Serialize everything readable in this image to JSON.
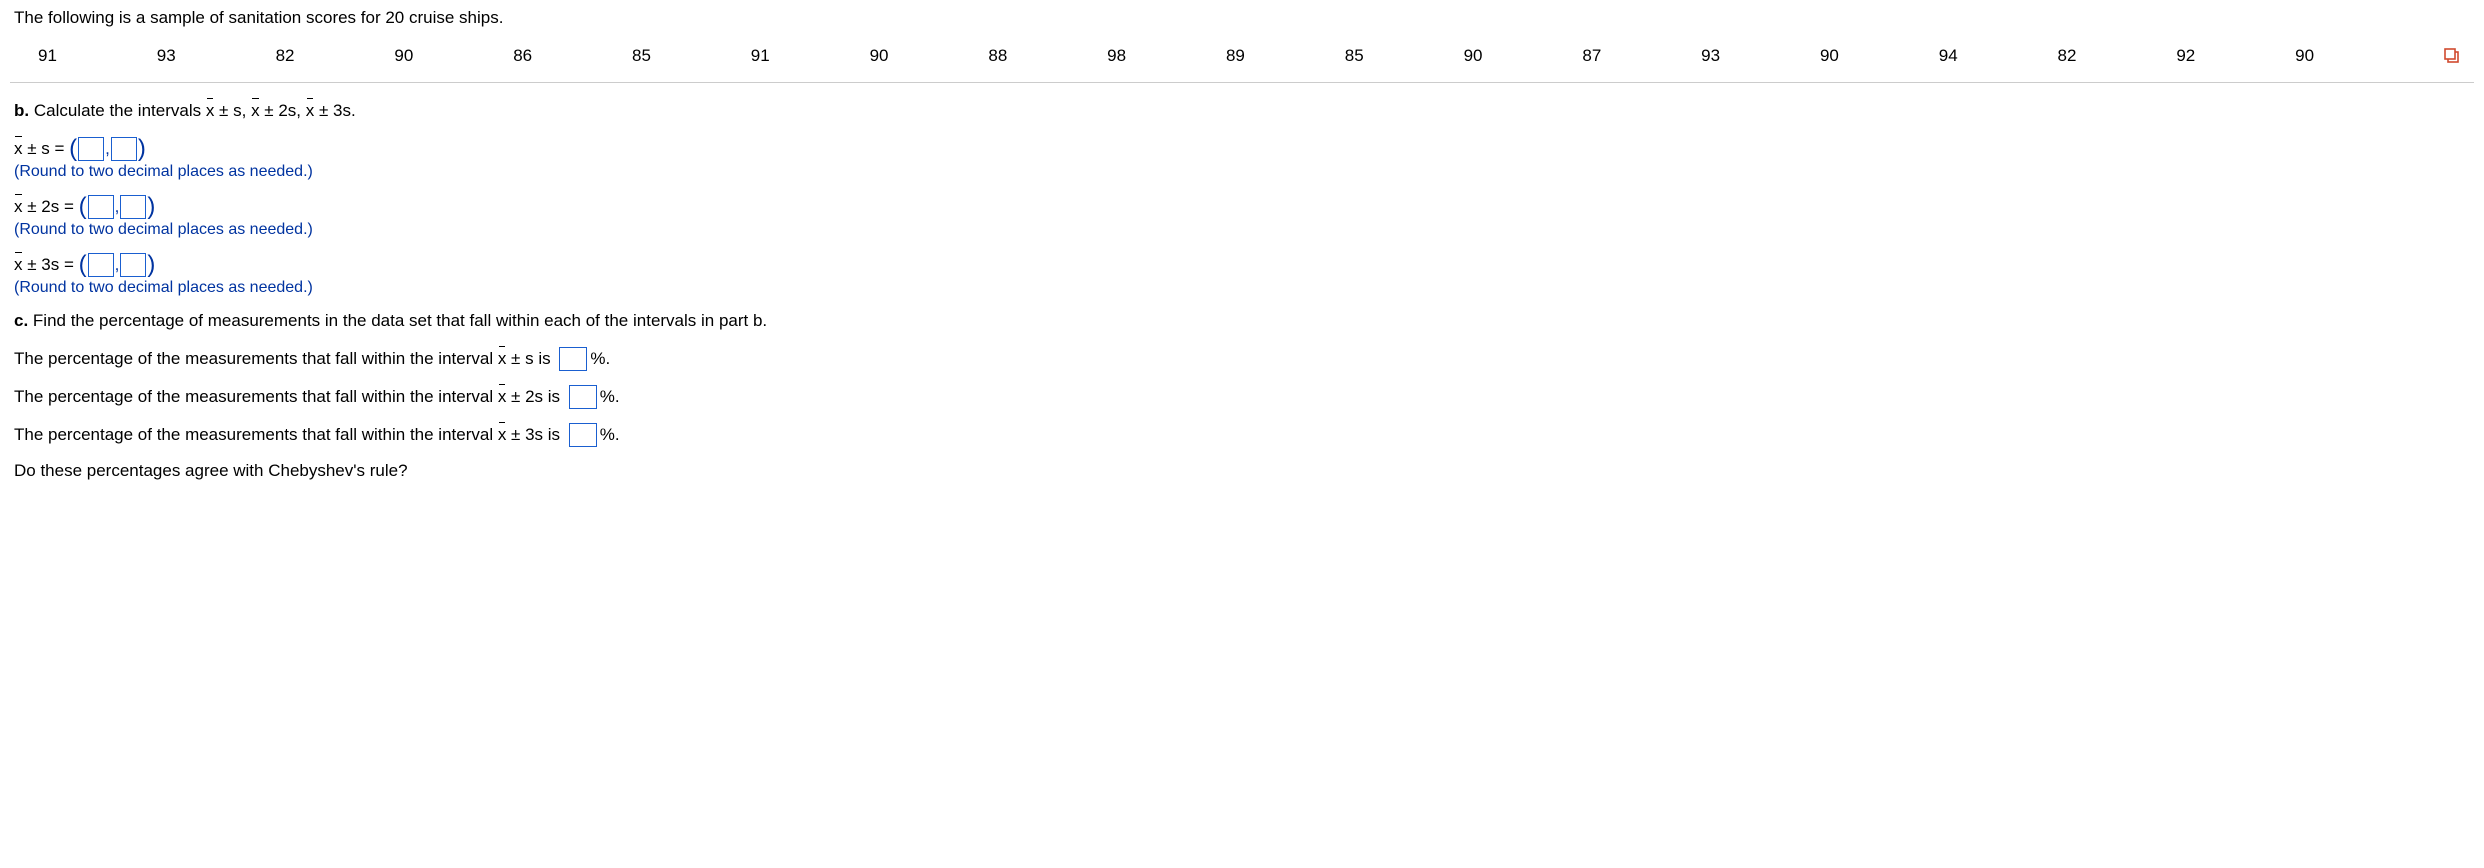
{
  "intro": "The following is a sample of sanitation scores for 20 cruise ships.",
  "data_values": [
    91,
    93,
    82,
    90,
    86,
    85,
    91,
    90,
    88,
    98,
    89,
    85,
    90,
    87,
    93,
    90,
    94,
    82,
    92,
    90
  ],
  "part_b": {
    "prefix": "b. ",
    "text_before": "Calculate the intervals ",
    "seg_xs": " ± s, ",
    "seg_x2s": " ± 2s, ",
    "seg_x3s": " ± 3s.",
    "x_char": "x"
  },
  "interval_rows": [
    {
      "label_x": "x",
      "label_rest": " ± s = "
    },
    {
      "label_x": "x",
      "label_rest": " ± 2s = "
    },
    {
      "label_x": "x",
      "label_rest": " ± 3s = "
    }
  ],
  "round_note": "(Round to two decimal places as needed.)",
  "part_c": {
    "prefix": "c. ",
    "text": "Find the percentage of measurements in the data set that fall within each of the intervals in part b."
  },
  "pct_rows": [
    {
      "before": "The percentage of the measurements that fall within the interval ",
      "x": "x",
      "after_x": " ± s is ",
      "suffix": "%."
    },
    {
      "before": "The percentage of the measurements that fall within the interval ",
      "x": "x",
      "after_x": " ± 2s is ",
      "suffix": "%."
    },
    {
      "before": "The percentage of the measurements that fall within the interval ",
      "x": "x",
      "after_x": " ± 3s is ",
      "suffix": "%."
    }
  ],
  "cheby_question": "Do these percentages agree with Chebyshev's rule?",
  "colors": {
    "link_blue": "#0033a0",
    "input_border": "#1a5fd0",
    "divider": "#cccccc",
    "popout": "#d04a2f"
  }
}
